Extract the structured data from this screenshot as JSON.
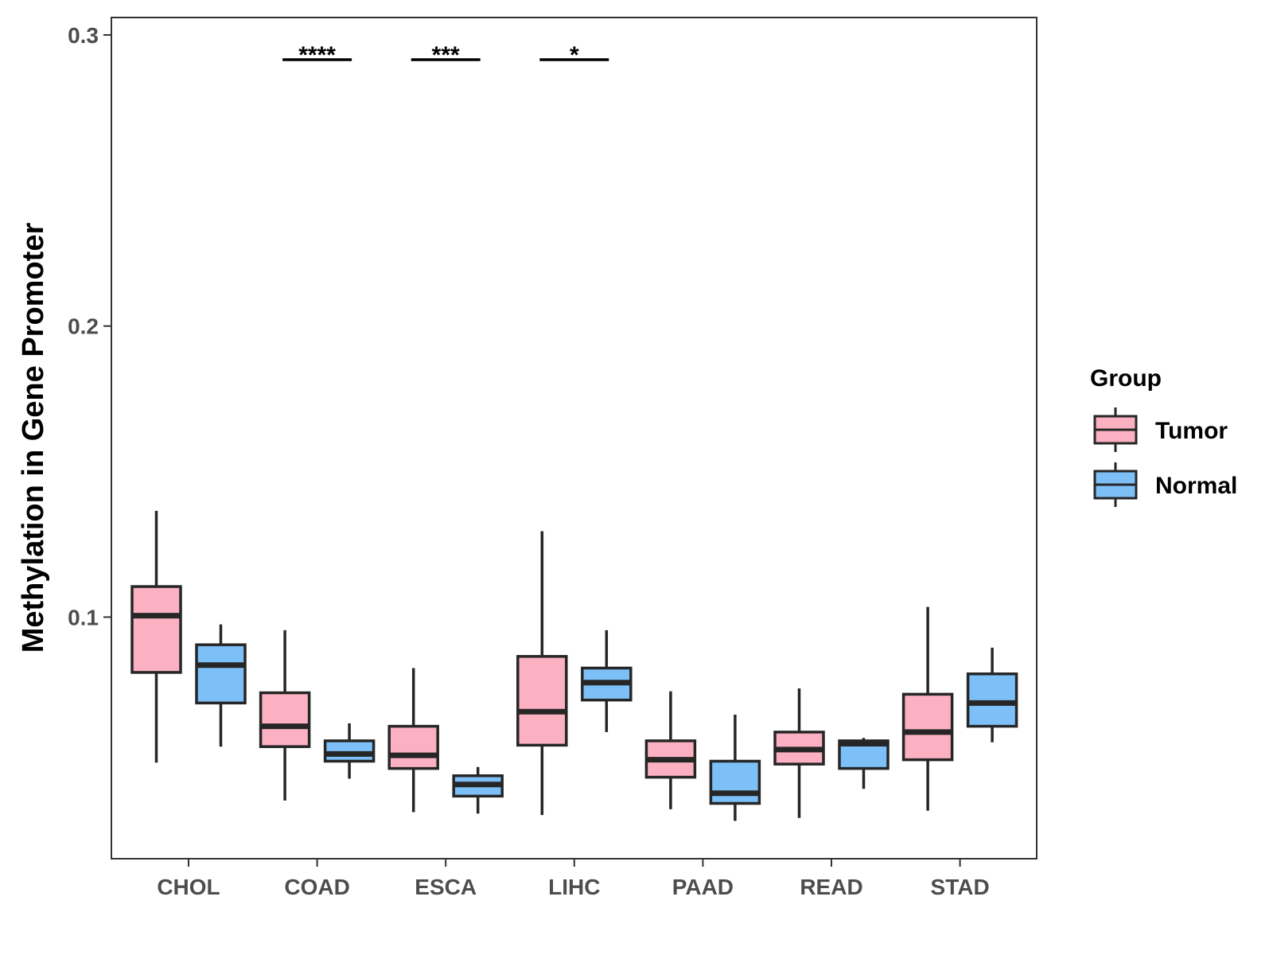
{
  "chart_data": {
    "type": "boxplot",
    "title": "",
    "xlabel": "",
    "ylabel": "Methylation in Gene Promoter",
    "ylim": [
      0.017,
      0.306
    ],
    "yticks": [
      {
        "value": 0.1,
        "label": "0.1"
      },
      {
        "value": 0.2,
        "label": "0.2"
      },
      {
        "value": 0.3,
        "label": "0.3"
      }
    ],
    "categories": [
      "CHOL",
      "COAD",
      "ESCA",
      "LIHC",
      "PAAD",
      "READ",
      "STAD"
    ],
    "legend": {
      "title": "Group",
      "position": "right",
      "entries": [
        {
          "name": "Tumor",
          "color": "#fbb1c2"
        },
        {
          "name": "Normal",
          "color": "#7cc0f7"
        }
      ]
    },
    "series": [
      {
        "name": "Tumor",
        "color": "#fbb1c2",
        "boxes": [
          {
            "min": 0.05,
            "q1": 0.081,
            "median": 0.1005,
            "q3": 0.1105,
            "max": 0.1365
          },
          {
            "min": 0.037,
            "q1": 0.0555,
            "median": 0.0625,
            "q3": 0.074,
            "max": 0.0955
          },
          {
            "min": 0.033,
            "q1": 0.048,
            "median": 0.0525,
            "q3": 0.0625,
            "max": 0.0825
          },
          {
            "min": 0.032,
            "q1": 0.056,
            "median": 0.0675,
            "q3": 0.0865,
            "max": 0.1295
          },
          {
            "min": 0.034,
            "q1": 0.045,
            "median": 0.051,
            "q3": 0.0575,
            "max": 0.0745
          },
          {
            "min": 0.031,
            "q1": 0.0495,
            "median": 0.0545,
            "q3": 0.0605,
            "max": 0.0755
          },
          {
            "min": 0.0335,
            "q1": 0.051,
            "median": 0.0605,
            "q3": 0.0735,
            "max": 0.1035
          }
        ]
      },
      {
        "name": "Normal",
        "color": "#7cc0f7",
        "boxes": [
          {
            "min": 0.0555,
            "q1": 0.0705,
            "median": 0.0835,
            "q3": 0.0905,
            "max": 0.0975
          },
          {
            "min": 0.0445,
            "q1": 0.0505,
            "median": 0.053,
            "q3": 0.0575,
            "max": 0.0635
          },
          {
            "min": 0.0325,
            "q1": 0.0385,
            "median": 0.0425,
            "q3": 0.0455,
            "max": 0.0485
          },
          {
            "min": 0.0605,
            "q1": 0.0715,
            "median": 0.0775,
            "q3": 0.0825,
            "max": 0.0955
          },
          {
            "min": 0.03,
            "q1": 0.036,
            "median": 0.0395,
            "q3": 0.0505,
            "max": 0.0665
          },
          {
            "min": 0.041,
            "q1": 0.048,
            "median": 0.0565,
            "q3": 0.0575,
            "max": 0.0585
          },
          {
            "min": 0.057,
            "q1": 0.0625,
            "median": 0.0705,
            "q3": 0.0805,
            "max": 0.0895
          }
        ]
      }
    ],
    "significance": [
      {
        "category": "COAD",
        "label": "****",
        "y": 0.2915
      },
      {
        "category": "ESCA",
        "label": "***",
        "y": 0.2915
      },
      {
        "category": "LIHC",
        "label": "*",
        "y": 0.2915
      }
    ]
  }
}
